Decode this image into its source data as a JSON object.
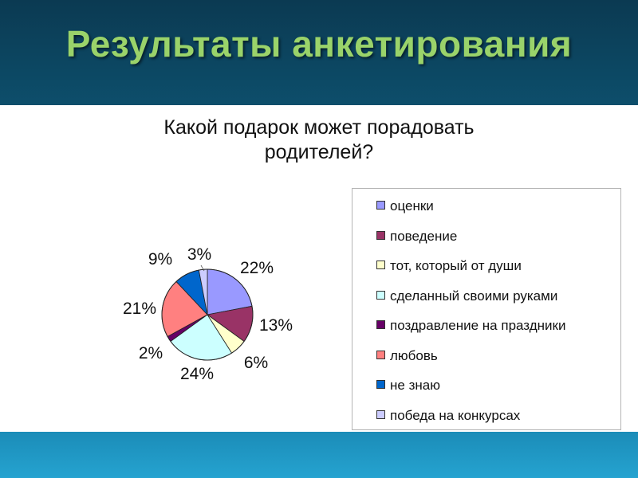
{
  "slide": {
    "title": "Результаты анкетирования"
  },
  "chart_data": {
    "type": "pie",
    "title_lines": [
      "Какой подарок может порадовать",
      "родителей?"
    ],
    "categories": [
      "оценки",
      "поведение",
      "тот, который от души",
      "сделанный своими руками",
      "поздравление на праздники",
      "любовь",
      "не знаю",
      "победа на конкурсах"
    ],
    "values": [
      22,
      13,
      6,
      24,
      2,
      21,
      9,
      3
    ],
    "labels": [
      "22%",
      "13%",
      "6%",
      "24%",
      "2%",
      "21%",
      "9%",
      "3%"
    ],
    "colors": [
      "#9999ff",
      "#993366",
      "#ffffcc",
      "#ccffff",
      "#660066",
      "#ff8080",
      "#0066cc",
      "#ccccff"
    ],
    "legend_position": "right"
  }
}
